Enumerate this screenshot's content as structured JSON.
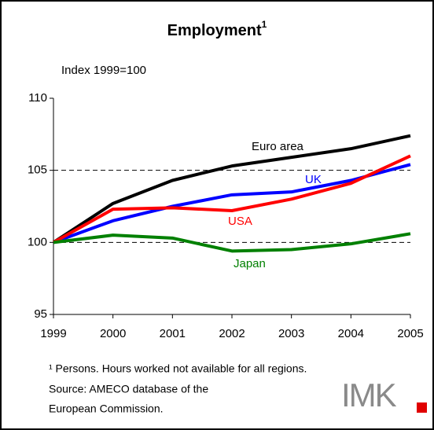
{
  "chart_data": {
    "type": "line",
    "title": "Employment",
    "title_superscript": "1",
    "subtitle": "Index 1999=100",
    "x": [
      1999,
      2000,
      2001,
      2002,
      2003,
      2004,
      2005
    ],
    "xlim": [
      1999,
      2005
    ],
    "xticks": [
      1999,
      2000,
      2001,
      2002,
      2003,
      2004,
      2005
    ],
    "ylim": [
      95,
      110
    ],
    "yticks": [
      95,
      100,
      105,
      110
    ],
    "grid": true,
    "series": [
      {
        "name": "Euro area",
        "color": "#000000",
        "values": [
          100,
          102.7,
          104.3,
          105.3,
          105.9,
          106.5,
          107.4
        ]
      },
      {
        "name": "UK",
        "color": "#0000ff",
        "values": [
          100,
          101.5,
          102.5,
          103.3,
          103.5,
          104.3,
          105.4
        ]
      },
      {
        "name": "USA",
        "color": "#ff0000",
        "values": [
          100,
          102.3,
          102.4,
          102.2,
          103.0,
          104.1,
          106.0
        ]
      },
      {
        "name": "Japan",
        "color": "#008000",
        "values": [
          100,
          100.5,
          100.3,
          99.4,
          99.5,
          99.9,
          100.6
        ]
      }
    ],
    "footnote": "¹ Persons. Hours worked not available for all regions.",
    "source": [
      "Source: AMECO database of the",
      "European Commission."
    ],
    "logo": "IMK"
  }
}
